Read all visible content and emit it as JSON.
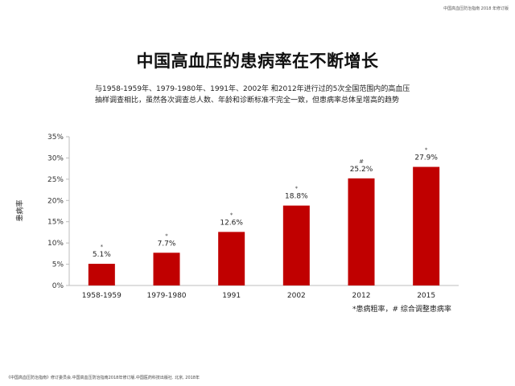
{
  "header": {
    "note": "中国高血压防治指南 2018 年修订版"
  },
  "title": "中国高血压的患病率在不断增长",
  "description": [
    "与1958-1959年、1979-1980年、1991年、2002年 和2012年进行过的5次全国范围内的高血压",
    "抽样调查相比，虽然各次调查总人数、年龄和诊断标准不完全一致，但患病率总体呈增高的趋势"
  ],
  "chart_data": {
    "type": "bar",
    "categories": [
      "1958-1959",
      "1979-1980",
      "1991",
      "2002",
      "2012",
      "2015"
    ],
    "values": [
      5.1,
      7.7,
      12.6,
      18.8,
      25.2,
      27.9
    ],
    "value_labels": [
      "5.1%",
      "7.7%",
      "12.6%",
      "18.8%",
      "25.2%",
      "27.9%"
    ],
    "markers": [
      "*",
      "*",
      "*",
      "*",
      "#",
      "*"
    ],
    "ylabel": "患病率",
    "ylim": [
      0,
      35
    ],
    "yticks": [
      0,
      5,
      10,
      15,
      20,
      25,
      30,
      35
    ],
    "ytick_labels": [
      "0%",
      "5%",
      "10%",
      "15%",
      "20%",
      "25%",
      "30%",
      "35%"
    ],
    "bar_color": "#c00000",
    "grid": false
  },
  "footnote": "*患病粗率，# 综合调整患病率",
  "source": "《中国高血压防治指南》修订委员会.中国高血压防治指南2018年修订版.中国医药科技出版社. 北京, 2018年"
}
